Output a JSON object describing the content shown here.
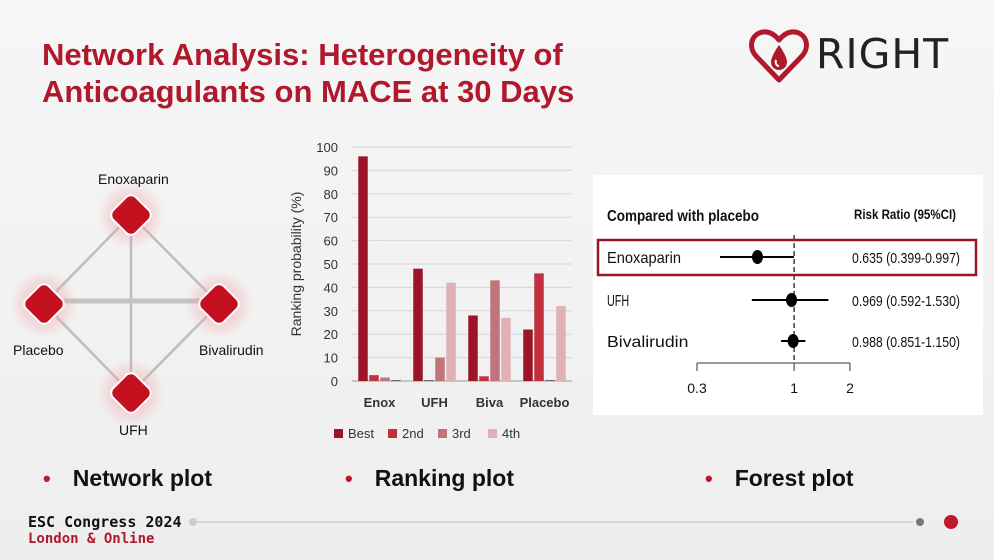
{
  "slide": {
    "title_line1": "Network Analysis:  Heterogeneity of",
    "title_line2": "Anticoagulants on MACE at 30 Days",
    "logo_text": "RIGHT",
    "brand_color": "#b0182b"
  },
  "network": {
    "nodes": [
      "Enoxaparin",
      "Placebo",
      "Bivalirudin",
      "UFH"
    ]
  },
  "chart_data": [
    {
      "type": "bar",
      "categories": [
        "Enox",
        "UFH",
        "Biva",
        "Placebo"
      ],
      "series": [
        {
          "name": "Best",
          "color": "#9b1528",
          "values": [
            96,
            48,
            28,
            22
          ]
        },
        {
          "name": "2nd",
          "color": "#c0303f",
          "values": [
            2.5,
            0,
            2,
            46
          ]
        },
        {
          "name": "3rd",
          "color": "#c2747b",
          "values": [
            1.5,
            10,
            43,
            0
          ]
        },
        {
          "name": "4th",
          "color": "#dfb1b5",
          "values": [
            0,
            42,
            27,
            32
          ]
        }
      ],
      "ylabel": "Ranking probability (%)",
      "ylim": [
        0,
        100
      ],
      "yticks": [
        "0",
        "10",
        "20",
        "30",
        "40",
        "50",
        "60",
        "70",
        "80",
        "90",
        "100"
      ],
      "grid": true,
      "legend": "bottom"
    },
    {
      "type": "forest",
      "header_left": "Compared with placebo",
      "header_right": "Risk Ratio  (95%CI)",
      "rows": [
        {
          "label": "Enoxaparin",
          "estimate": 0.635,
          "lo": 0.399,
          "hi": 0.997,
          "text": "0.635 (0.399-0.997)",
          "highlight": true
        },
        {
          "label": "UFH",
          "estimate": 0.969,
          "lo": 0.592,
          "hi": 1.53,
          "text": "0.969 (0.592-1.530)",
          "highlight": false
        },
        {
          "label": "Bivalirudin",
          "estimate": 0.988,
          "lo": 0.851,
          "hi": 1.15,
          "text": "0.988 (0.851-1.150)",
          "highlight": false
        }
      ],
      "xticks": [
        "0.3",
        "1",
        "2"
      ],
      "scale": "log"
    }
  ],
  "bullets": [
    "Network plot",
    "Ranking plot",
    "Forest plot"
  ],
  "footer": {
    "line1": "ESC Congress 2024",
    "line2": "London & Online"
  }
}
